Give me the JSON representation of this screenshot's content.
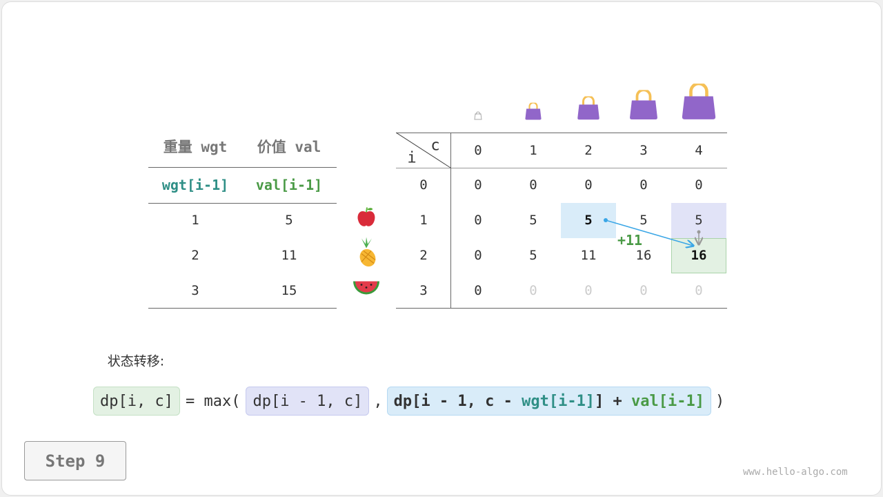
{
  "item_table": {
    "headers": [
      "重量 wgt",
      "价值 val"
    ],
    "subheaders": [
      "wgt[i-1]",
      "val[i-1]"
    ],
    "rows": [
      [
        "1",
        "5"
      ],
      [
        "2",
        "11"
      ],
      [
        "3",
        "15"
      ]
    ]
  },
  "items": [
    "apple-icon",
    "pineapple-icon",
    "watermelon-icon"
  ],
  "dp_table": {
    "corner_i": "i",
    "corner_c": "c",
    "capacities": [
      "0",
      "1",
      "2",
      "3",
      "4"
    ],
    "row_labels": [
      "0",
      "1",
      "2",
      "3"
    ],
    "rows": [
      [
        "0",
        "0",
        "0",
        "0",
        "0"
      ],
      [
        "0",
        "5",
        "5",
        "5",
        "5"
      ],
      [
        "0",
        "5",
        "11",
        "16",
        "16"
      ],
      [
        "0",
        "0",
        "0",
        "0",
        "0"
      ]
    ],
    "computed_rows": 2,
    "computed_cols_last_row": 0,
    "highlight": {
      "source_take": [
        1,
        2
      ],
      "source_skip": [
        1,
        4
      ],
      "target": [
        2,
        4
      ]
    },
    "annotation": "+11"
  },
  "colors": {
    "take": "#d9ecf9",
    "skip": "#e1e3f7",
    "target": "#e3f1e3",
    "teal": "#2f8f86",
    "green": "#4a9a46",
    "arrow": "#3aa6e6",
    "bag": "#9166c9"
  },
  "transition_label": "状态转移:",
  "formula": {
    "lhs": "dp[i, c]",
    "eq": "= max(",
    "skip": "dp[i - 1, c]",
    "comma": ",",
    "take_a": "dp[i - 1, c - ",
    "take_wgt": "wgt[i-1]",
    "take_b": "] + ",
    "take_val": "val[i-1]",
    "close": ")"
  },
  "step_label": "Step 9",
  "watermark": "www.hello-algo.com"
}
